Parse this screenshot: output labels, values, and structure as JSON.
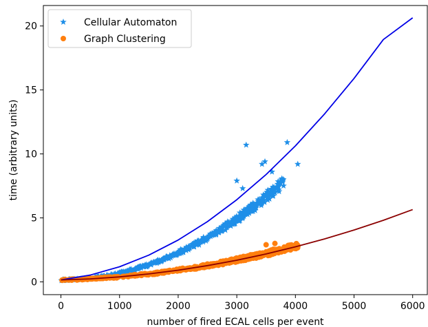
{
  "chart_data": {
    "type": "scatter",
    "xlabel": "number of fired ECAL cells per event",
    "ylabel": "time (arbitrary units)",
    "xlim": [
      -300,
      6250
    ],
    "ylim": [
      -1.0,
      21.6
    ],
    "xticks": [
      0,
      1000,
      2000,
      3000,
      4000,
      5000,
      6000
    ],
    "xtick_labels": [
      "0",
      "1000",
      "2000",
      "3000",
      "4000",
      "5000",
      "6000"
    ],
    "yticks": [
      0,
      5,
      10,
      15,
      20
    ],
    "ytick_labels": [
      "0",
      "5",
      "10",
      "15",
      "20"
    ],
    "legend": {
      "placement": "top-left"
    },
    "series": [
      {
        "name": "Cellular Automaton",
        "marker": "star",
        "color": "#1f8fe8",
        "band": {
          "x_range": [
            0,
            3800
          ],
          "fit": [
            0.15,
            5e-07,
            5.3e-07
          ],
          "spread_frac": 0.06
        },
        "outliers": [
          [
            3160,
            10.7
          ],
          [
            3860,
            10.9
          ],
          [
            4040,
            9.2
          ],
          [
            3000,
            7.9
          ],
          [
            3480,
            9.4
          ],
          [
            3430,
            9.2
          ],
          [
            3600,
            8.6
          ],
          [
            3100,
            7.3
          ]
        ]
      },
      {
        "name": "Graph Clustering",
        "marker": "circle",
        "color": "#ff7f0e",
        "band": {
          "x_range": [
            0,
            4050
          ],
          "fit": [
            0.15,
            0.0001,
            1.4e-07
          ],
          "spread_frac": 0.08
        },
        "outliers": [
          [
            3500,
            2.9
          ],
          [
            3650,
            3.0
          ],
          [
            3900,
            2.8
          ],
          [
            4040,
            2.8
          ]
        ]
      },
      {
        "name": "",
        "type": "line",
        "color": "#0000e6",
        "x": [
          0,
          500,
          1000,
          1500,
          2000,
          2500,
          3000,
          3500,
          4000,
          4500,
          5000,
          5500,
          6000
        ],
        "y": [
          0.15,
          0.53,
          1.18,
          2.09,
          3.27,
          4.71,
          6.42,
          8.39,
          10.63,
          13.14,
          15.9,
          18.94,
          20.64
        ]
      },
      {
        "name": "",
        "type": "line",
        "color": "#8b0000",
        "x": [
          0,
          500,
          1000,
          1500,
          2000,
          2500,
          3000,
          3500,
          4000,
          4500,
          5000,
          5500,
          6000
        ],
        "y": [
          0.15,
          0.23,
          0.39,
          0.62,
          0.91,
          1.27,
          1.69,
          2.18,
          2.74,
          3.36,
          4.05,
          4.81,
          5.65
        ]
      }
    ]
  }
}
